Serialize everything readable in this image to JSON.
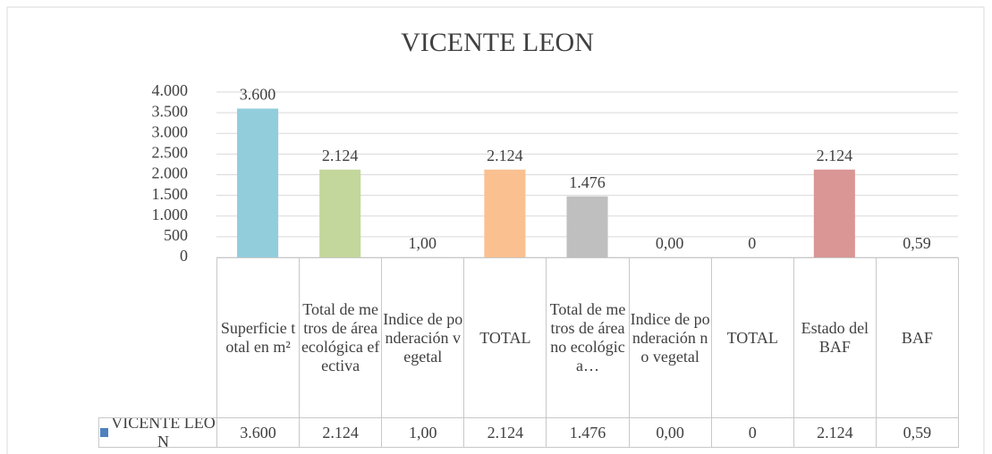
{
  "chart_data": {
    "type": "bar",
    "title": "VICENTE LEON",
    "categories": [
      "Superficie total en m²",
      "Total de metros de área ecológica efectiva",
      "Indice de ponderación vegetal",
      "TOTAL",
      "Total de metros de área no ecológica…",
      "Indice de ponderación no vegetal",
      "TOTAL",
      "Estado del BAF",
      "BAF"
    ],
    "series": [
      {
        "name": "VICENTE LEON",
        "color": "#4f81bd",
        "values": [
          3600,
          2124,
          1,
          2124,
          1476,
          0,
          0,
          2124,
          0.59
        ],
        "value_labels": [
          "3.600",
          "2.124",
          "1,00",
          "2.124",
          "1.476",
          "0,00",
          "0",
          "2.124",
          "0,59"
        ],
        "colors": [
          "#92cddc",
          "#c3d69b",
          "#b3a2c7",
          "#fac090",
          "#bfbfbf",
          "#8eb4e3",
          "#a6a6a6",
          "#d99694",
          "#b7dee8"
        ]
      }
    ],
    "ylim": [
      0,
      4000
    ],
    "yticks": [
      0,
      500,
      {
        "value": 1000,
        "label": "1.000"
      },
      {
        "value": 1500,
        "label": "1.500"
      },
      {
        "value": 2000,
        "label": "2.000"
      },
      {
        "value": 2500,
        "label": "2.500"
      },
      {
        "value": 3000,
        "label": "3.000"
      },
      {
        "value": 3500,
        "label": "3.500"
      },
      {
        "value": 4000,
        "label": "4.000"
      }
    ],
    "grid": true,
    "data_table": true
  }
}
